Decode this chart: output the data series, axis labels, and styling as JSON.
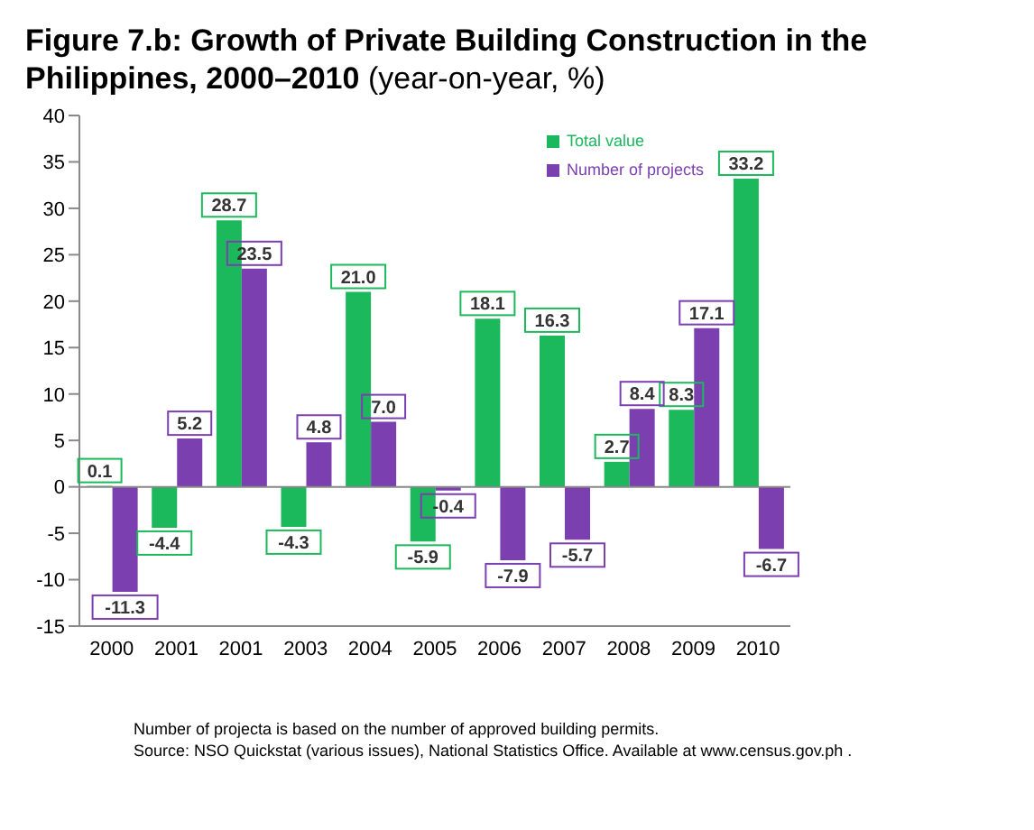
{
  "chart_data": {
    "type": "bar",
    "title": "Figure 7.b: Growth of Private Building Construction in the Philippines, 2000–2010",
    "subtitle": "(year-on-year, %)",
    "categories": [
      "2000",
      "2001",
      "2001",
      "2003",
      "2004",
      "2005",
      "2006",
      "2007",
      "2008",
      "2009",
      "2010"
    ],
    "series": [
      {
        "name": "Total value",
        "color": "#1cb85c",
        "values": [
          0.1,
          -4.4,
          28.7,
          -4.3,
          21.0,
          -5.9,
          18.1,
          16.3,
          2.7,
          8.3,
          33.2
        ],
        "value_labels": [
          "0.1",
          "-4.4",
          "28.7",
          "-4.3",
          "21.0",
          "-5.9",
          "18.1",
          "16.3",
          "2.7",
          "8.3",
          "33.2"
        ]
      },
      {
        "name": "Number of projects",
        "color": "#7b3fb0",
        "values": [
          -11.3,
          5.2,
          23.5,
          4.8,
          7.0,
          -0.4,
          -7.9,
          -5.7,
          8.4,
          17.1,
          -6.7
        ],
        "value_labels": [
          "-11.3",
          "5.2",
          "23.5",
          "4.8",
          "7.0",
          "-0.4",
          "-7.9",
          "-5.7",
          "8.4",
          "17.1",
          "-6.7"
        ]
      }
    ],
    "ylim": [
      -15,
      40
    ],
    "yticks": [
      -15,
      -10,
      -5,
      0,
      5,
      10,
      15,
      20,
      25,
      30,
      35,
      40
    ],
    "ref_lines": [
      {
        "axis": "y",
        "value": 0
      }
    ],
    "grid": false,
    "legend": "top right",
    "annotations": [
      "Number of projecta is based on  the number of approved building permits.",
      "Source: NSO Quickstat (various issues), National Statistics Office. Available at www.census.gov.ph ."
    ]
  }
}
